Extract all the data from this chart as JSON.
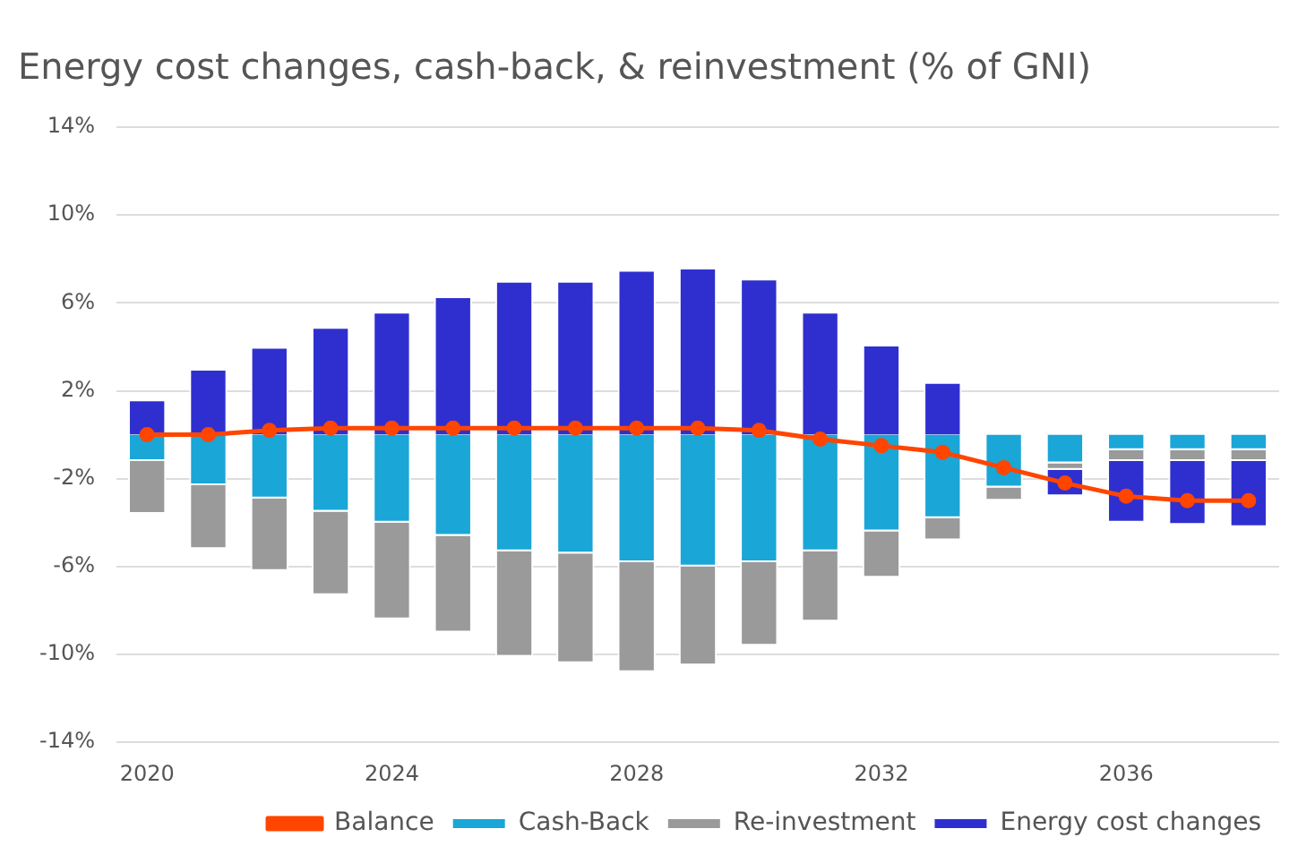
{
  "chart_data": {
    "type": "bar",
    "title": "Energy cost changes, cash-back, & reinvestment (% of GNI)",
    "categories": [
      "2020",
      null,
      null,
      null,
      "2024",
      null,
      null,
      null,
      "2028",
      null,
      null,
      null,
      "2032",
      null,
      null,
      null,
      "2036",
      null,
      null
    ],
    "stacked": true,
    "series": [
      {
        "name": "Cash-Back",
        "color": "#1aa6d6",
        "values": [
          -1.2,
          -2.3,
          -2.9,
          -3.5,
          -4.0,
          -4.6,
          -5.3,
          -5.4,
          -5.8,
          -6.0,
          -5.8,
          -5.3,
          -4.4,
          -3.8,
          -2.4,
          -1.3,
          -0.7,
          -0.7,
          -0.7
        ]
      },
      {
        "name": "Re-investment",
        "color": "#9a9a9a",
        "values": [
          -2.4,
          -2.9,
          -3.3,
          -3.8,
          -4.4,
          -4.4,
          -4.8,
          -5.0,
          -5.0,
          -4.5,
          -3.8,
          -3.2,
          -2.1,
          -1.0,
          -0.6,
          -0.3,
          -0.5,
          -0.5,
          -0.5
        ]
      },
      {
        "name": "Energy cost changes",
        "color": "#2f2fd0",
        "values": [
          1.6,
          3.0,
          4.0,
          4.9,
          5.6,
          6.3,
          7.0,
          7.0,
          7.5,
          7.6,
          7.1,
          5.6,
          4.1,
          2.4,
          0,
          -1.2,
          -2.8,
          -2.9,
          -3.0
        ]
      },
      {
        "name": "Balance",
        "type": "line",
        "color": "#ff4500",
        "marker": "circle",
        "values": [
          0,
          0,
          0.2,
          0.3,
          0.3,
          0.3,
          0.3,
          0.3,
          0.3,
          0.3,
          0.2,
          -0.2,
          -0.5,
          -0.8,
          -1.5,
          -2.2,
          -2.8,
          -3.0,
          -3.0
        ]
      }
    ],
    "ylim": [
      -14,
      14
    ],
    "yticks": [
      {
        "value": -14,
        "label": "-14%"
      },
      {
        "value": -10,
        "label": "-10%"
      },
      {
        "value": -6,
        "label": "-6%"
      },
      {
        "value": -2,
        "label": "-2%"
      },
      {
        "value": 2,
        "label": "2%"
      },
      {
        "value": 6,
        "label": "6%"
      },
      {
        "value": 10,
        "label": "10%"
      },
      {
        "value": 14,
        "label": "14%"
      }
    ],
    "grid": "y",
    "legend": "bottom"
  }
}
